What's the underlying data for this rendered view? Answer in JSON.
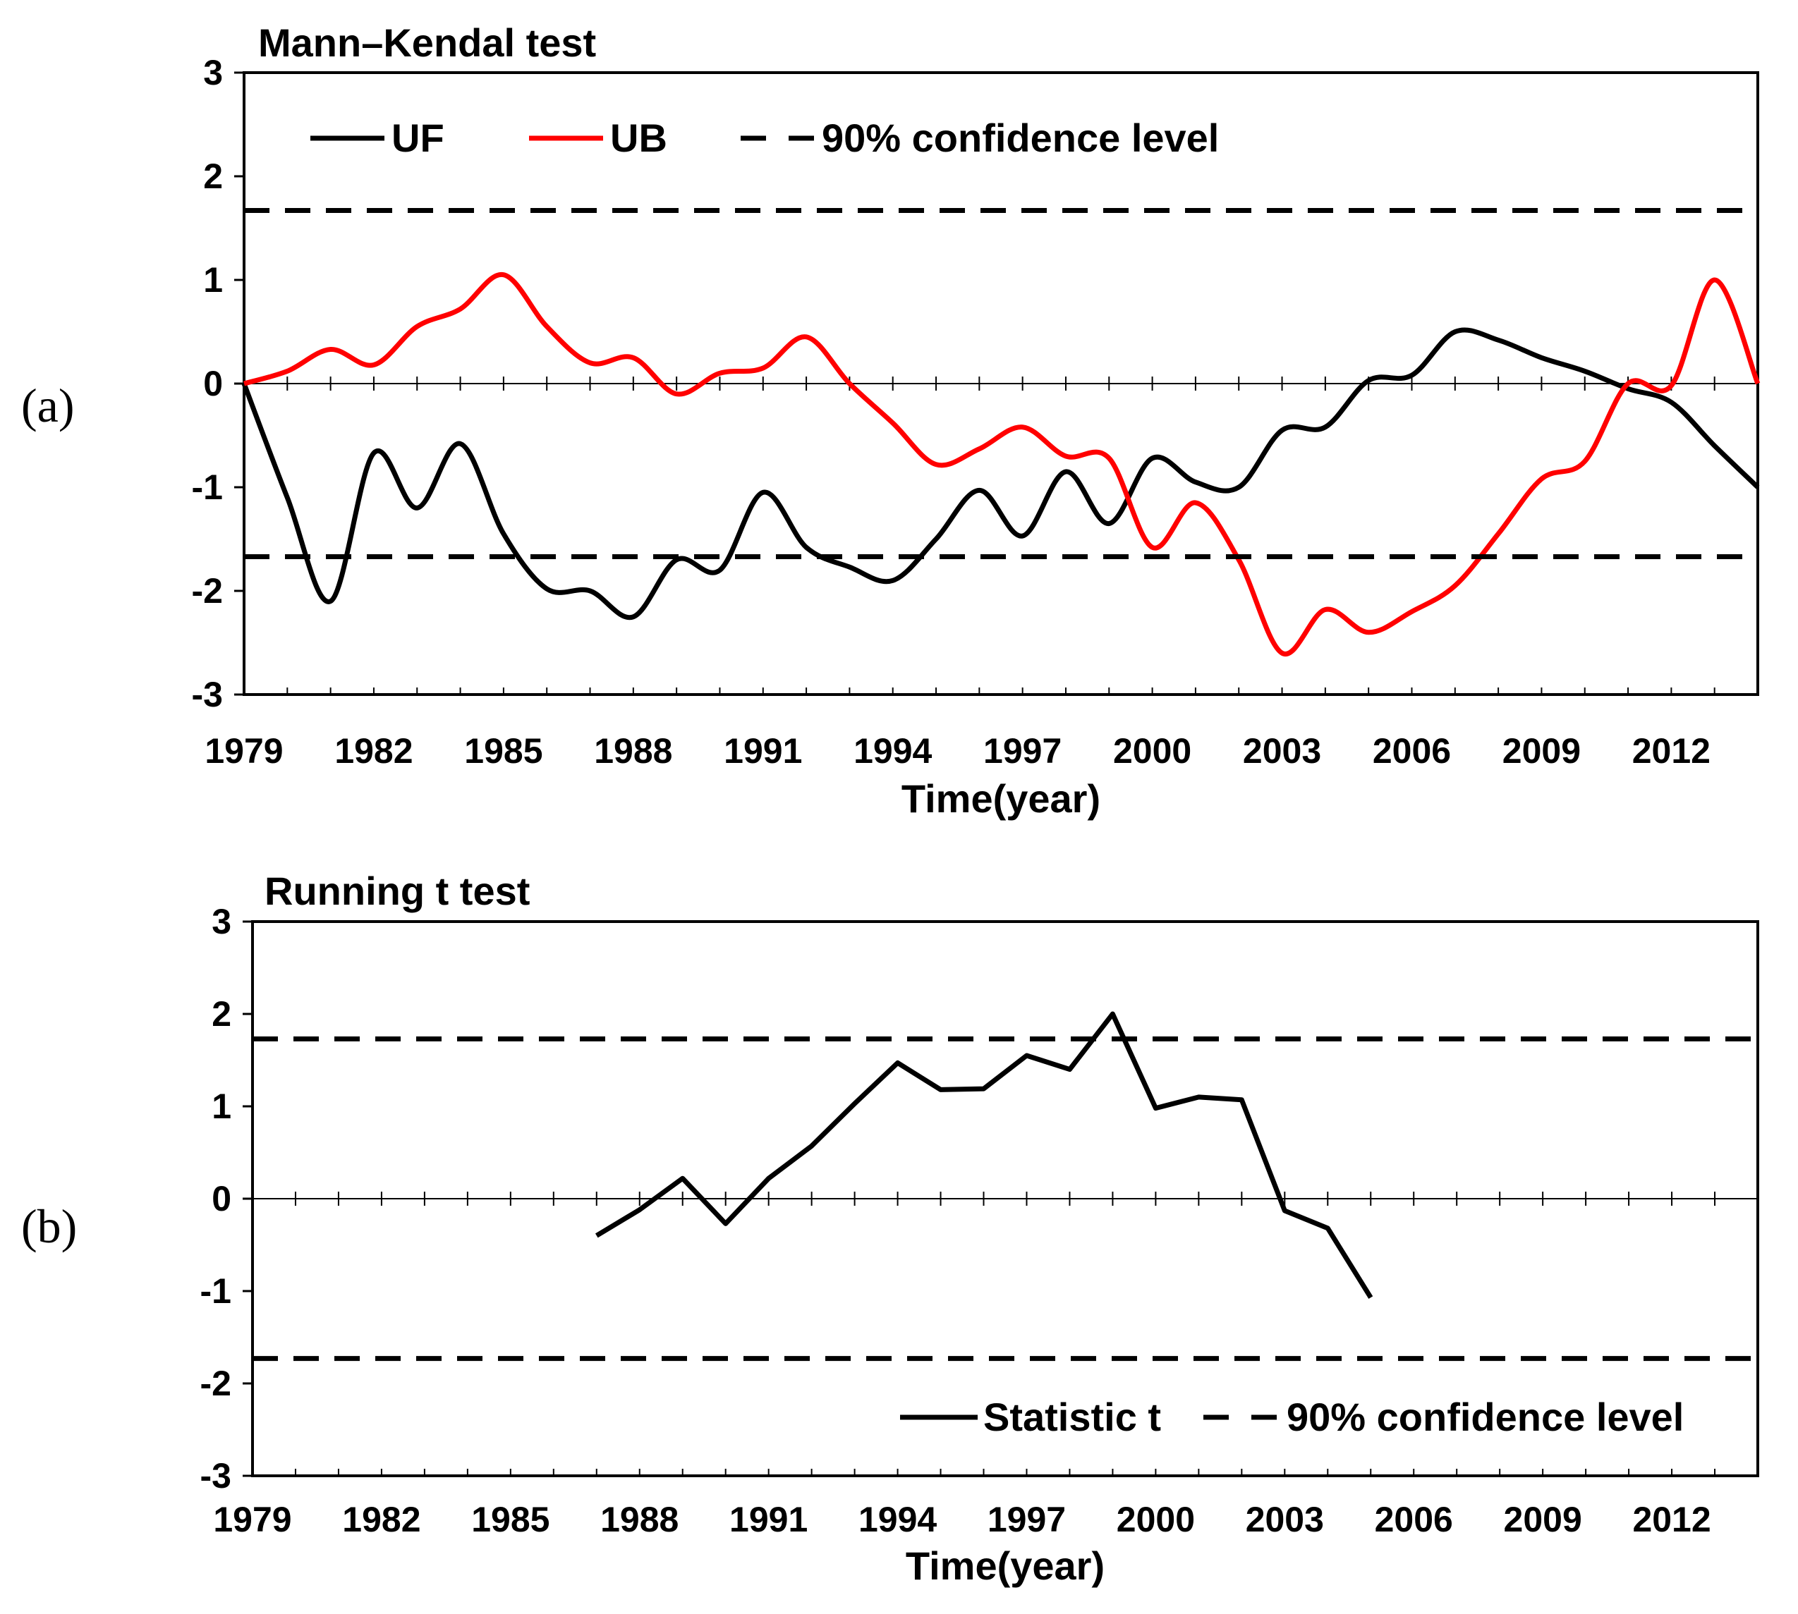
{
  "panels": [
    {
      "panel_label": "(a)",
      "chart_data": {
        "type": "line",
        "title": "Mann–Kendal test",
        "xlabel": "Time(year)",
        "ylabel": "",
        "xlim": [
          1979,
          2014
        ],
        "ylim": [
          -3,
          3
        ],
        "xticks": [
          1979,
          1982,
          1985,
          1988,
          1991,
          1994,
          1997,
          2000,
          2003,
          2006,
          2009,
          2012
        ],
        "yticks": [
          3,
          2,
          1,
          0,
          -1,
          -2,
          -3
        ],
        "grid": false,
        "legend_position": "top-left",
        "x": [
          1979,
          1980,
          1981,
          1982,
          1983,
          1984,
          1985,
          1986,
          1987,
          1988,
          1989,
          1990,
          1991,
          1992,
          1993,
          1994,
          1995,
          1996,
          1997,
          1998,
          1999,
          2000,
          2001,
          2002,
          2003,
          2004,
          2005,
          2006,
          2007,
          2008,
          2009,
          2010,
          2011,
          2012,
          2013,
          2014
        ],
        "series": [
          {
            "name": "UF",
            "color": "#000000",
            "style": "solid",
            "smooth": true,
            "values": [
              0.0,
              -1.1,
              -2.1,
              -0.67,
              -1.2,
              -0.58,
              -1.45,
              -1.98,
              -2.0,
              -2.25,
              -1.7,
              -1.8,
              -1.05,
              -1.58,
              -1.77,
              -1.9,
              -1.5,
              -1.03,
              -1.47,
              -0.85,
              -1.35,
              -0.72,
              -0.95,
              -1.0,
              -0.45,
              -0.42,
              0.03,
              0.08,
              0.5,
              0.42,
              0.25,
              0.12,
              -0.05,
              -0.18,
              -0.6,
              -1.0
            ]
          },
          {
            "name": "UB",
            "color": "#ff0000",
            "style": "solid",
            "smooth": true,
            "values": [
              0.0,
              0.12,
              0.33,
              0.18,
              0.55,
              0.72,
              1.05,
              0.55,
              0.2,
              0.25,
              -0.1,
              0.1,
              0.15,
              0.45,
              0.0,
              -0.38,
              -0.78,
              -0.63,
              -0.42,
              -0.7,
              -0.72,
              -1.58,
              -1.15,
              -1.7,
              -2.6,
              -2.18,
              -2.4,
              -2.2,
              -1.95,
              -1.45,
              -0.92,
              -0.75,
              0.0,
              -0.02,
              1.0,
              0.0
            ]
          },
          {
            "name": "90% confidence level",
            "color": "#000000",
            "style": "dashed",
            "smooth": false,
            "x": [
              1979,
              2014
            ],
            "values": [
              1.67,
              1.67
            ]
          },
          {
            "name": "",
            "color": "#000000",
            "style": "dashed",
            "smooth": false,
            "x": [
              1979,
              2014
            ],
            "values": [
              -1.67,
              -1.67
            ]
          }
        ]
      }
    },
    {
      "panel_label": "(b)",
      "chart_data": {
        "type": "line",
        "title": "Running t test",
        "xlabel": "Time(year)",
        "ylabel": "",
        "xlim": [
          1979,
          2014
        ],
        "ylim": [
          -3,
          3
        ],
        "xticks": [
          1979,
          1982,
          1985,
          1988,
          1991,
          1994,
          1997,
          2000,
          2003,
          2006,
          2009,
          2012
        ],
        "yticks": [
          3,
          2,
          1,
          0,
          -1,
          -2,
          -3
        ],
        "grid": false,
        "legend_position": "bottom-right",
        "series": [
          {
            "name": "Statistic t",
            "color": "#000000",
            "style": "solid",
            "smooth": false,
            "x": [
              1987,
              1988,
              1989,
              1990,
              1991,
              1992,
              1993,
              1994,
              1995,
              1996,
              1997,
              1998,
              1999,
              2000,
              2001,
              2002,
              2003,
              2004,
              2005
            ],
            "values": [
              -0.4,
              -0.12,
              0.22,
              -0.27,
              0.22,
              0.57,
              1.03,
              1.47,
              1.18,
              1.19,
              1.55,
              1.4,
              2.0,
              0.98,
              1.1,
              1.07,
              -0.13,
              -0.32,
              -1.07
            ]
          },
          {
            "name": "90% confidence level",
            "color": "#000000",
            "style": "dashed",
            "smooth": false,
            "x": [
              1979,
              2014
            ],
            "values": [
              1.73,
              1.73
            ]
          },
          {
            "name": "",
            "color": "#000000",
            "style": "dashed",
            "smooth": false,
            "x": [
              1979,
              2014
            ],
            "values": [
              -1.73,
              -1.73
            ]
          }
        ]
      }
    }
  ]
}
